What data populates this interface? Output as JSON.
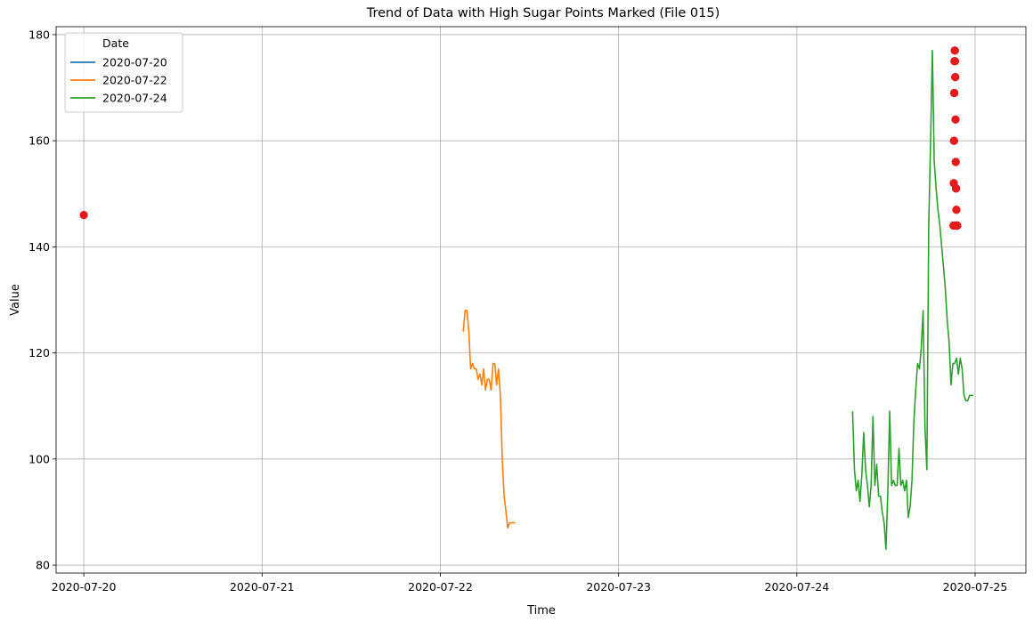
{
  "chart_data": {
    "type": "line",
    "title": "Trend of Data with High Sugar Points Marked (File 015)",
    "xlabel": "Time",
    "ylabel": "Value",
    "x_axis": "date",
    "xlim": [
      "2020-07-19 20:16",
      "2020-07-25 06:50"
    ],
    "ylim": [
      78.5,
      181.5
    ],
    "xticks": [
      "2020-07-20",
      "2020-07-21",
      "2020-07-22",
      "2020-07-23",
      "2020-07-24",
      "2020-07-25"
    ],
    "yticks": [
      80,
      100,
      120,
      140,
      160,
      180
    ],
    "grid": true,
    "legend": {
      "title": "Date",
      "placement": "upper-left"
    },
    "series": [
      {
        "name": "2020-07-20",
        "color": "#1f77b4",
        "x": [
          "2020-07-20 00:00"
        ],
        "y": [
          146
        ]
      },
      {
        "name": "2020-07-22",
        "color": "#ff7f0e",
        "x": [
          "2020-07-22 03:05",
          "2020-07-22 03:20",
          "2020-07-22 03:35",
          "2020-07-22 03:50",
          "2020-07-22 04:05",
          "2020-07-22 04:20",
          "2020-07-22 04:35",
          "2020-07-22 04:50",
          "2020-07-22 05:05",
          "2020-07-22 05:20",
          "2020-07-22 05:35",
          "2020-07-22 05:50",
          "2020-07-22 06:05",
          "2020-07-22 06:20",
          "2020-07-22 06:35",
          "2020-07-22 06:50",
          "2020-07-22 07:05",
          "2020-07-22 07:20",
          "2020-07-22 07:35",
          "2020-07-22 07:50",
          "2020-07-22 08:05",
          "2020-07-22 08:20",
          "2020-07-22 08:35",
          "2020-07-22 08:50",
          "2020-07-22 09:05",
          "2020-07-22 09:20",
          "2020-07-22 09:35",
          "2020-07-22 09:50",
          "2020-07-22 10:05"
        ],
        "y": [
          124,
          128,
          128,
          124,
          117,
          118,
          117,
          117,
          115,
          116,
          114,
          117,
          113,
          115,
          115,
          113,
          118,
          118,
          114,
          117,
          112,
          100,
          93,
          90,
          87,
          88,
          88,
          88,
          88
        ]
      },
      {
        "name": "2020-07-24",
        "color": "#2ca02c",
        "x": [
          "2020-07-24 07:30",
          "2020-07-24 07:45",
          "2020-07-24 08:00",
          "2020-07-24 08:15",
          "2020-07-24 08:30",
          "2020-07-24 08:45",
          "2020-07-24 09:00",
          "2020-07-24 09:15",
          "2020-07-24 09:30",
          "2020-07-24 09:45",
          "2020-07-24 10:00",
          "2020-07-24 10:15",
          "2020-07-24 10:30",
          "2020-07-24 10:45",
          "2020-07-24 11:00",
          "2020-07-24 11:15",
          "2020-07-24 11:30",
          "2020-07-24 11:45",
          "2020-07-24 12:00",
          "2020-07-24 12:15",
          "2020-07-24 12:30",
          "2020-07-24 12:45",
          "2020-07-24 13:00",
          "2020-07-24 13:15",
          "2020-07-24 13:30",
          "2020-07-24 13:45",
          "2020-07-24 14:00",
          "2020-07-24 14:15",
          "2020-07-24 14:30",
          "2020-07-24 14:45",
          "2020-07-24 15:00",
          "2020-07-24 15:15",
          "2020-07-24 15:30",
          "2020-07-24 15:45",
          "2020-07-24 16:00",
          "2020-07-24 16:15",
          "2020-07-24 16:30",
          "2020-07-24 16:45",
          "2020-07-24 17:00",
          "2020-07-24 17:15",
          "2020-07-24 17:30",
          "2020-07-24 17:45",
          "2020-07-24 18:00",
          "2020-07-24 18:15",
          "2020-07-24 18:30",
          "2020-07-24 18:45",
          "2020-07-24 19:00",
          "2020-07-24 19:15",
          "2020-07-24 19:30",
          "2020-07-24 19:45",
          "2020-07-24 20:00",
          "2020-07-24 20:15",
          "2020-07-24 20:30",
          "2020-07-24 20:45",
          "2020-07-24 21:00",
          "2020-07-24 21:15",
          "2020-07-24 21:30",
          "2020-07-24 21:45",
          "2020-07-24 22:00",
          "2020-07-24 22:15",
          "2020-07-24 22:30",
          "2020-07-24 22:45",
          "2020-07-24 23:00",
          "2020-07-24 23:15",
          "2020-07-24 23:30",
          "2020-07-24 23:45"
        ],
        "y": [
          109,
          98,
          94,
          96,
          92,
          97,
          105,
          98,
          95,
          91,
          95,
          108,
          95,
          99,
          93,
          93,
          90,
          88,
          83,
          94,
          109,
          95,
          96,
          95,
          95,
          102,
          95,
          96,
          94,
          96,
          89,
          91,
          96,
          107,
          113,
          118,
          117,
          121,
          128,
          106,
          98,
          144,
          160,
          177,
          156,
          151,
          147,
          144,
          140,
          136,
          132,
          126,
          122,
          114,
          118,
          118,
          119,
          116,
          119,
          117,
          112,
          111,
          111,
          112,
          112,
          112
        ]
      }
    ],
    "high_sugar_points": {
      "color": "#e41a1c",
      "x": [
        "2020-07-20 00:00",
        "2020-07-24 21:05",
        "2020-07-24 21:06",
        "2020-07-24 21:07",
        "2020-07-24 21:08",
        "2020-07-24 21:09",
        "2020-07-24 21:10",
        "2020-07-24 21:11",
        "2020-07-24 21:12",
        "2020-07-24 21:13",
        "2020-07-24 21:14",
        "2020-07-24 21:15",
        "2020-07-24 21:16",
        "2020-07-24 21:17",
        "2020-07-24 21:18",
        "2020-07-24 21:19",
        "2020-07-24 21:20",
        "2020-07-24 21:21",
        "2020-07-24 21:22",
        "2020-07-24 21:23",
        "2020-07-24 21:24",
        "2020-07-24 21:25",
        "2020-07-24 21:26",
        "2020-07-24 21:27",
        "2020-07-24 21:28",
        "2020-07-24 21:29",
        "2020-07-24 21:30",
        "2020-07-24 21:31",
        "2020-07-24 21:32",
        "2020-07-24 21:33",
        "2020-07-24 21:34",
        "2020-07-24 21:35",
        "2020-07-24 21:36"
      ],
      "y": [
        146,
        144,
        144,
        152,
        152,
        160,
        160,
        169,
        169,
        175,
        175,
        177,
        177,
        177,
        175,
        172,
        172,
        164,
        164,
        156,
        156,
        151,
        151,
        151,
        147,
        147,
        144,
        144,
        144,
        144,
        144,
        144,
        144
      ]
    }
  }
}
